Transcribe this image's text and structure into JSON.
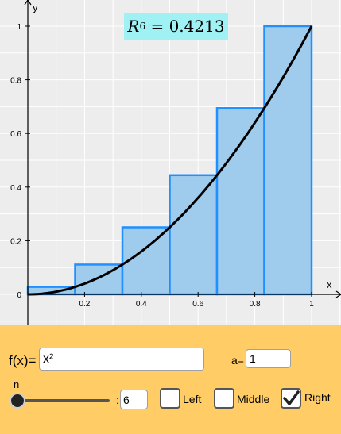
{
  "graph": {
    "riemann_label": {
      "symbol": "R",
      "subscript": "6",
      "equals": "= 0.4213"
    },
    "x_axis_label": "x",
    "y_axis_label": "y",
    "x_ticks": [
      {
        "value": 0.2,
        "label": "0.2"
      },
      {
        "value": 0.4,
        "label": "0.4"
      },
      {
        "value": 0.6,
        "label": "0.6"
      },
      {
        "value": 0.8,
        "label": "0.8"
      },
      {
        "value": 1,
        "label": "1"
      }
    ],
    "y_ticks": [
      {
        "value": 0,
        "label": "0"
      },
      {
        "value": 0.2,
        "label": "0.2"
      },
      {
        "value": 0.4,
        "label": "0.4"
      },
      {
        "value": 0.6,
        "label": "0.6"
      },
      {
        "value": 0.8,
        "label": "0.8"
      },
      {
        "value": 1,
        "label": "1"
      }
    ],
    "x_range": [
      -0.1,
      1.11
    ],
    "y_range": [
      -0.11,
      1.1
    ],
    "grid": true,
    "function": "x^2",
    "interval": [
      0,
      1
    ],
    "n": 6,
    "method": "right",
    "rectangle_heights": [
      0.0278,
      0.1111,
      0.25,
      0.4444,
      0.6944,
      1.0
    ],
    "colors": {
      "background": "#ededed",
      "grid": "#ffffff",
      "rect_fill": "#9fcbec",
      "rect_stroke": "#1e90ff",
      "curve": "#000000",
      "label_bg": "#9ff1f4"
    }
  },
  "controls": {
    "function_label": "f(x)=",
    "function_value": "x²",
    "a_label": "a=",
    "a_value": "1",
    "n_label": "n",
    "n_colon": ":",
    "n_value": "6",
    "slider_value": 6,
    "left_label": "Left",
    "left_checked": false,
    "middle_label": "Middle",
    "middle_checked": false,
    "right_label": "Right",
    "right_checked": true,
    "panel_color": "#ffcc66"
  }
}
